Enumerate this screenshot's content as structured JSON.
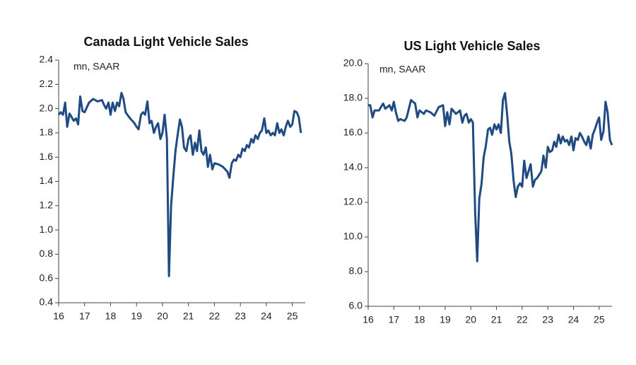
{
  "chart_data": [
    {
      "type": "line",
      "title": "Canada Light Vehicle Sales",
      "subtitle": "mn, SAAR",
      "color": "#1f4a82",
      "xlim": [
        16,
        25.5
      ],
      "xticks": [
        16,
        17,
        18,
        19,
        20,
        21,
        22,
        23,
        24,
        25
      ],
      "ylim": [
        0.4,
        2.4
      ],
      "yticks": [
        0.4,
        0.6,
        0.8,
        {
          "value": 1,
          "label": "1.0"
        },
        1.2,
        1.4,
        1.6,
        1.8,
        {
          "value": 2,
          "label": "2.0"
        },
        2.2,
        2.4
      ],
      "x": [
        16.0,
        16.08,
        16.17,
        16.25,
        16.33,
        16.42,
        16.5,
        16.58,
        16.67,
        16.75,
        16.83,
        16.92,
        17.0,
        17.17,
        17.33,
        17.5,
        17.67,
        17.75,
        17.83,
        17.92,
        18.0,
        18.08,
        18.17,
        18.25,
        18.33,
        18.42,
        18.5,
        18.58,
        18.75,
        18.92,
        19.0,
        19.08,
        19.17,
        19.25,
        19.33,
        19.42,
        19.5,
        19.58,
        19.67,
        19.75,
        19.83,
        19.92,
        20.0,
        20.08,
        20.17,
        20.25,
        20.33,
        20.42,
        20.5,
        20.58,
        20.67,
        20.75,
        20.83,
        20.92,
        21.0,
        21.08,
        21.17,
        21.25,
        21.33,
        21.42,
        21.5,
        21.58,
        21.67,
        21.75,
        21.83,
        21.92,
        22.0,
        22.17,
        22.33,
        22.5,
        22.58,
        22.67,
        22.75,
        22.83,
        22.92,
        23.0,
        23.08,
        23.17,
        23.25,
        23.33,
        23.42,
        23.5,
        23.58,
        23.67,
        23.75,
        23.83,
        23.92,
        24.0,
        24.08,
        24.17,
        24.25,
        24.33,
        24.42,
        24.5,
        24.58,
        24.67,
        24.75,
        24.83,
        24.92,
        25.0,
        25.08,
        25.17,
        25.25,
        25.33
      ],
      "values": [
        1.95,
        1.97,
        1.95,
        2.05,
        1.85,
        1.96,
        1.93,
        1.9,
        1.92,
        1.87,
        2.1,
        1.98,
        1.97,
        2.05,
        2.08,
        2.06,
        2.07,
        2.03,
        2.0,
        2.05,
        1.95,
        2.05,
        1.98,
        2.05,
        2.02,
        2.13,
        2.08,
        1.97,
        1.92,
        1.88,
        1.85,
        1.83,
        1.95,
        1.97,
        1.95,
        2.06,
        1.88,
        1.9,
        1.8,
        1.85,
        1.88,
        1.75,
        1.8,
        1.95,
        1.75,
        0.62,
        1.2,
        1.45,
        1.65,
        1.78,
        1.91,
        1.85,
        1.68,
        1.65,
        1.75,
        1.78,
        1.62,
        1.72,
        1.65,
        1.82,
        1.65,
        1.62,
        1.68,
        1.52,
        1.62,
        1.5,
        1.55,
        1.54,
        1.52,
        1.48,
        1.43,
        1.55,
        1.58,
        1.57,
        1.62,
        1.6,
        1.67,
        1.65,
        1.7,
        1.68,
        1.75,
        1.72,
        1.78,
        1.75,
        1.8,
        1.82,
        1.92,
        1.8,
        1.82,
        1.78,
        1.8,
        1.78,
        1.88,
        1.8,
        1.83,
        1.78,
        1.85,
        1.9,
        1.85,
        1.87,
        1.98,
        1.97,
        1.93,
        1.8
      ]
    },
    {
      "type": "line",
      "title": "US Light Vehicle Sales",
      "subtitle": "mn, SAAR",
      "color": "#1f4a82",
      "xlim": [
        16,
        25.5
      ],
      "xticks": [
        16,
        17,
        18,
        19,
        20,
        21,
        22,
        23,
        24,
        25
      ],
      "ylim": [
        6,
        20
      ],
      "yticks": [
        {
          "value": 6,
          "label": "6.0"
        },
        {
          "value": 8,
          "label": "8.0"
        },
        {
          "value": 10,
          "label": "10.0"
        },
        {
          "value": 12,
          "label": "12.0"
        },
        {
          "value": 14,
          "label": "14.0"
        },
        {
          "value": 16,
          "label": "16.0"
        },
        {
          "value": 18,
          "label": "18.0"
        },
        {
          "value": 20,
          "label": "20.0"
        }
      ],
      "x": [
        16.0,
        16.08,
        16.17,
        16.25,
        16.42,
        16.58,
        16.67,
        16.83,
        16.92,
        17.0,
        17.08,
        17.17,
        17.25,
        17.42,
        17.5,
        17.67,
        17.83,
        17.92,
        18.0,
        18.17,
        18.25,
        18.42,
        18.58,
        18.75,
        18.92,
        19.0,
        19.08,
        19.17,
        19.25,
        19.42,
        19.58,
        19.67,
        19.75,
        19.83,
        19.92,
        20.0,
        20.08,
        20.17,
        20.25,
        20.33,
        20.42,
        20.5,
        20.58,
        20.67,
        20.75,
        20.83,
        20.92,
        21.0,
        21.08,
        21.17,
        21.25,
        21.33,
        21.42,
        21.5,
        21.58,
        21.67,
        21.75,
        21.83,
        21.92,
        22.0,
        22.08,
        22.17,
        22.25,
        22.33,
        22.42,
        22.5,
        22.58,
        22.67,
        22.75,
        22.83,
        22.92,
        23.0,
        23.08,
        23.17,
        23.25,
        23.33,
        23.42,
        23.5,
        23.58,
        23.67,
        23.75,
        23.83,
        23.92,
        24.0,
        24.08,
        24.17,
        24.25,
        24.33,
        24.42,
        24.5,
        24.58,
        24.67,
        24.75,
        24.83,
        24.92,
        25.0,
        25.08,
        25.17,
        25.25,
        25.33,
        25.42,
        25.5
      ],
      "values": [
        17.6,
        17.6,
        16.9,
        17.3,
        17.3,
        17.7,
        17.4,
        17.6,
        17.3,
        17.8,
        17.2,
        16.7,
        16.8,
        16.7,
        16.9,
        17.9,
        17.7,
        16.9,
        17.3,
        17.1,
        17.3,
        17.2,
        17.0,
        17.5,
        17.6,
        16.4,
        17.2,
        16.5,
        17.4,
        17.1,
        17.3,
        16.6,
        17.0,
        17.1,
        16.6,
        16.8,
        16.6,
        11.4,
        8.6,
        12.2,
        13.1,
        14.6,
        15.2,
        16.2,
        16.3,
        15.9,
        16.5,
        16.2,
        16.5,
        16.0,
        17.9,
        18.3,
        17.0,
        15.5,
        14.8,
        13.2,
        12.3,
        12.9,
        13.1,
        12.9,
        14.4,
        13.4,
        13.8,
        14.2,
        12.9,
        13.3,
        13.4,
        13.6,
        13.8,
        14.7,
        14.0,
        15.2,
        14.9,
        15.0,
        15.5,
        15.2,
        15.9,
        15.4,
        15.8,
        15.5,
        15.6,
        15.3,
        15.8,
        15.0,
        15.7,
        15.6,
        16.0,
        15.8,
        15.5,
        15.3,
        15.8,
        15.1,
        15.9,
        16.2,
        16.6,
        16.9,
        15.6,
        16.1,
        17.8,
        17.2,
        15.6,
        15.3
      ]
    }
  ]
}
